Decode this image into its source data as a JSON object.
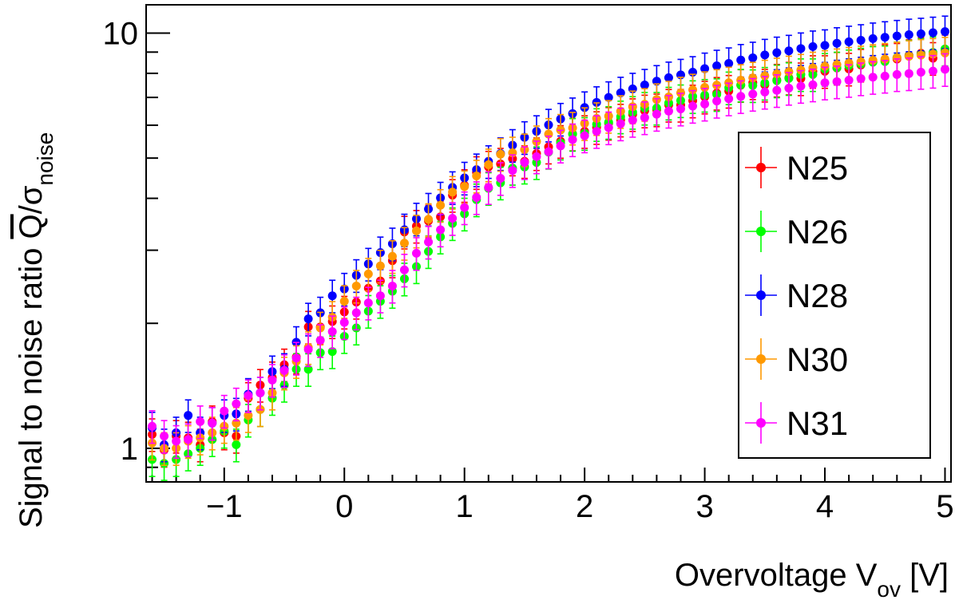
{
  "chart_data": {
    "type": "scatter",
    "title": "",
    "xlabel": {
      "main": "Overvoltage V",
      "sub": "ov",
      "unit": " [V]"
    },
    "ylabel": {
      "main": "Signal to noise ratio ",
      "qbar": "Q",
      "slash": "/σ",
      "sub": "noise"
    },
    "xlim": [
      -1.65,
      5.05
    ],
    "ylim": [
      0.83,
      11.7
    ],
    "yscale": "log",
    "x_ticks": [
      -1,
      0,
      1,
      2,
      3,
      4,
      5
    ],
    "x_tick_labels": [
      "−1",
      "0",
      "1",
      "2",
      "3",
      "4",
      "5"
    ],
    "y_tick_labels": [
      {
        "value": 1,
        "label": "1"
      },
      {
        "value": 10,
        "label": "10"
      }
    ],
    "legend_position": "right",
    "x": [
      -1.6,
      -1.5,
      -1.4,
      -1.3,
      -1.2,
      -1.1,
      -1.0,
      -0.9,
      -0.8,
      -0.7,
      -0.6,
      -0.5,
      -0.4,
      -0.3,
      -0.2,
      -0.1,
      0.0,
      0.1,
      0.2,
      0.3,
      0.4,
      0.5,
      0.6,
      0.7,
      0.8,
      0.9,
      1.0,
      1.1,
      1.2,
      1.3,
      1.4,
      1.5,
      1.6,
      1.7,
      1.8,
      1.9,
      2.0,
      2.1,
      2.2,
      2.3,
      2.4,
      2.5,
      2.6,
      2.7,
      2.8,
      2.9,
      3.0,
      3.1,
      3.2,
      3.3,
      3.4,
      3.5,
      3.6,
      3.7,
      3.8,
      3.9,
      4.0,
      4.1,
      4.2,
      4.3,
      4.4,
      4.5,
      4.6,
      4.7,
      4.8,
      4.9,
      5.0
    ],
    "series": [
      {
        "name": "N25",
        "color": "#ff0000",
        "values": [
          1.08,
          0.99,
          1.07,
          1.06,
          1.02,
          1.16,
          1.09,
          1.07,
          1.32,
          1.42,
          1.48,
          1.59,
          1.66,
          1.96,
          1.96,
          2.02,
          2.13,
          2.25,
          2.43,
          2.53,
          2.83,
          3.32,
          3.43,
          3.53,
          3.61,
          4.07,
          4.3,
          4.62,
          4.76,
          4.84,
          4.98,
          4.91,
          5.13,
          5.32,
          5.49,
          5.72,
          5.8,
          5.93,
          6.07,
          6.18,
          6.37,
          6.5,
          6.54,
          6.71,
          6.71,
          6.87,
          7.02,
          7.17,
          7.25,
          7.49,
          7.6,
          7.5,
          7.71,
          7.8,
          7.77,
          8.09,
          8.09,
          8.24,
          8.2,
          8.38,
          8.52,
          8.6,
          8.66,
          8.84,
          8.94,
          8.7,
          9.07
        ]
      },
      {
        "name": "N26",
        "color": "#00ff00",
        "values": [
          0.94,
          0.92,
          0.94,
          0.97,
          1.0,
          1.05,
          1.1,
          1.02,
          1.17,
          1.24,
          1.32,
          1.42,
          1.55,
          1.55,
          1.7,
          1.71,
          1.86,
          1.95,
          2.14,
          2.26,
          2.39,
          2.56,
          2.74,
          2.98,
          3.23,
          3.48,
          3.67,
          3.97,
          4.23,
          4.36,
          4.73,
          4.76,
          4.88,
          5.17,
          5.44,
          5.71,
          5.74,
          6.03,
          6.1,
          6.29,
          6.45,
          6.6,
          6.6,
          6.79,
          6.88,
          7.04,
          7.09,
          7.12,
          7.39,
          7.5,
          7.48,
          7.58,
          7.68,
          7.78,
          7.95,
          7.95,
          8.19,
          8.25,
          8.35,
          8.43,
          8.51,
          8.54,
          8.73,
          8.81,
          8.89,
          8.98,
          9.16
        ]
      },
      {
        "name": "N28",
        "color": "#0000ff",
        "values": [
          1.12,
          1.02,
          1.09,
          1.2,
          1.09,
          1.15,
          1.2,
          1.21,
          1.35,
          1.36,
          1.53,
          1.55,
          1.8,
          2.05,
          2.12,
          2.33,
          2.42,
          2.61,
          2.78,
          2.96,
          3.11,
          3.36,
          3.57,
          3.77,
          4.01,
          4.25,
          4.48,
          4.69,
          4.91,
          5.13,
          5.37,
          5.61,
          5.8,
          6.01,
          6.21,
          6.4,
          6.62,
          6.81,
          7.0,
          7.18,
          7.34,
          7.5,
          7.66,
          7.81,
          7.93,
          8.05,
          8.21,
          8.34,
          8.45,
          8.61,
          8.72,
          8.86,
          8.97,
          9.06,
          9.18,
          9.28,
          9.34,
          9.45,
          9.53,
          9.61,
          9.7,
          9.77,
          9.84,
          9.91,
          9.96,
          10.02,
          10.08
        ]
      },
      {
        "name": "N30",
        "color": "#ff9900",
        "values": [
          1.03,
          1.0,
          1.0,
          1.04,
          1.06,
          1.09,
          1.13,
          1.15,
          1.2,
          1.24,
          1.36,
          1.52,
          1.62,
          1.75,
          1.95,
          2.07,
          2.26,
          2.46,
          2.63,
          2.75,
          2.9,
          3.12,
          3.34,
          3.56,
          3.85,
          4.14,
          4.27,
          4.53,
          4.82,
          5.11,
          5.15,
          5.24,
          5.48,
          5.71,
          5.84,
          5.91,
          6.06,
          6.23,
          6.31,
          6.48,
          6.65,
          6.74,
          6.92,
          7.02,
          7.18,
          7.3,
          7.4,
          7.49,
          7.59,
          7.7,
          7.8,
          7.89,
          7.98,
          8.07,
          8.15,
          8.25,
          8.32,
          8.4,
          8.47,
          8.53,
          8.6,
          8.66,
          8.72,
          8.79,
          8.85,
          8.9,
          8.96
        ]
      },
      {
        "name": "N31",
        "color": "#ff00ff",
        "values": [
          1.13,
          1.07,
          1.04,
          1.05,
          1.16,
          1.15,
          1.23,
          1.28,
          1.34,
          1.36,
          1.46,
          1.54,
          1.65,
          1.73,
          1.82,
          1.91,
          2.01,
          2.12,
          2.24,
          2.33,
          2.46,
          2.69,
          2.95,
          3.14,
          3.36,
          3.58,
          3.8,
          4.02,
          4.25,
          4.47,
          4.67,
          4.88,
          5.04,
          5.18,
          5.35,
          5.54,
          5.66,
          5.8,
          5.92,
          6.05,
          6.17,
          6.26,
          6.38,
          6.49,
          6.57,
          6.67,
          6.75,
          6.86,
          6.95,
          7.04,
          7.13,
          7.21,
          7.28,
          7.37,
          7.45,
          7.51,
          7.59,
          7.64,
          7.7,
          7.77,
          7.83,
          7.88,
          7.95,
          7.99,
          8.05,
          8.1,
          8.18
        ]
      }
    ]
  }
}
